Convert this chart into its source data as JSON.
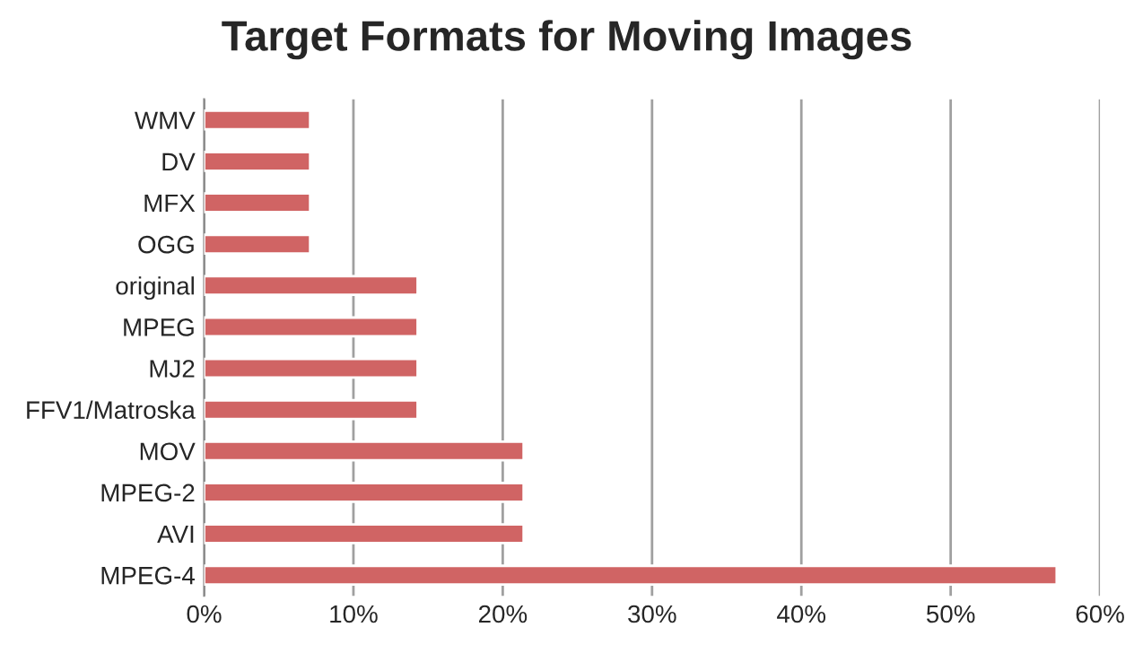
{
  "chart_data": {
    "type": "bar",
    "orientation": "horizontal",
    "title": "Target Formats for Moving Images",
    "categories": [
      "WMV",
      "DV",
      "MFX",
      "OGG",
      "original",
      "MPEG",
      "MJ2",
      "FFV1/Matroska",
      "MOV",
      "MPEG-2",
      "AVI",
      "MPEG-4"
    ],
    "values": [
      7.1,
      7.1,
      7.1,
      7.1,
      14.3,
      14.3,
      14.3,
      14.3,
      21.4,
      21.4,
      21.4,
      57.1
    ],
    "color": "#d06464",
    "xlim": [
      0,
      60
    ],
    "xticks": [
      {
        "value": 0,
        "label": "0%"
      },
      {
        "value": 10,
        "label": "10%"
      },
      {
        "value": 20,
        "label": "20%"
      },
      {
        "value": 30,
        "label": "30%"
      },
      {
        "value": 40,
        "label": "40%"
      },
      {
        "value": 50,
        "label": "50%"
      },
      {
        "value": 60,
        "label": "60%"
      }
    ],
    "grid": "x",
    "legend": false
  }
}
